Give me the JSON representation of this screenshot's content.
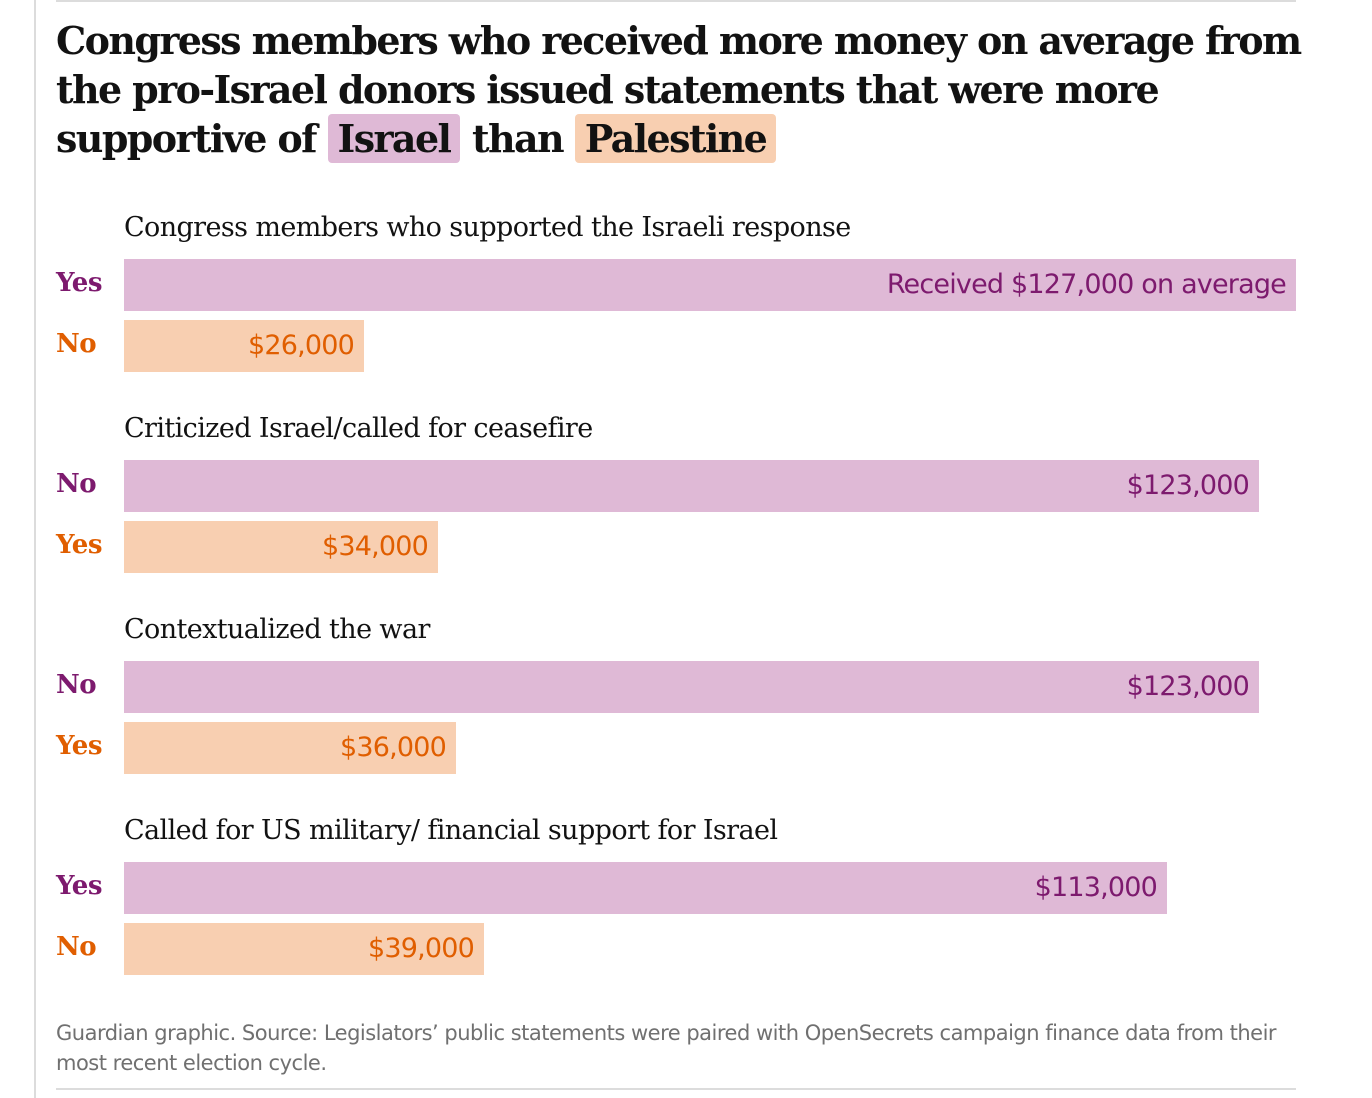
{
  "title": {
    "line_prefix": "Congress members who received more money on average from the pro-Israel donors issued statements that were more supportive of",
    "israel": "Israel",
    "middle": "than",
    "palestine": "Palestine"
  },
  "colors": {
    "israel_bar": "#dfb9d6",
    "israel_text": "#7d1a6e",
    "palestine_bar": "#f8cfb1",
    "palestine_text": "#e05e00",
    "title_text": "#121212",
    "source_text": "#707070"
  },
  "source": "Guardian graphic. Source: Legislators’ public statements were paired with OpenSecrets campaign finance data from their most recent election cycle.",
  "chart_data": {
    "type": "bar",
    "orientation": "horizontal",
    "title": "Congress members who received more money on average from the pro-Israel donors issued statements that were more supportive of Israel than Palestine",
    "xlabel": "",
    "ylabel": "",
    "unit": "USD (average received)",
    "xlim": [
      0,
      127000
    ],
    "grid": false,
    "groups": [
      {
        "title": "Congress members who supported the Israeli response",
        "rows": [
          {
            "label": "Yes",
            "side": "israel",
            "value": 127000,
            "value_label": "Received $127,000 on average"
          },
          {
            "label": "No",
            "side": "palestine",
            "value": 26000,
            "value_label": "$26,000"
          }
        ]
      },
      {
        "title": "Criticized Israel/called for ceasefire",
        "rows": [
          {
            "label": "No",
            "side": "israel",
            "value": 123000,
            "value_label": "$123,000"
          },
          {
            "label": "Yes",
            "side": "palestine",
            "value": 34000,
            "value_label": "$34,000"
          }
        ]
      },
      {
        "title": "Contextualized the war",
        "rows": [
          {
            "label": "No",
            "side": "israel",
            "value": 123000,
            "value_label": "$123,000"
          },
          {
            "label": "Yes",
            "side": "palestine",
            "value": 36000,
            "value_label": "$36,000"
          }
        ]
      },
      {
        "title": "Called for US military/ financial support for Israel",
        "rows": [
          {
            "label": "Yes",
            "side": "israel",
            "value": 113000,
            "value_label": "$113,000"
          },
          {
            "label": "No",
            "side": "palestine",
            "value": 39000,
            "value_label": "$39,000"
          }
        ]
      }
    ]
  }
}
